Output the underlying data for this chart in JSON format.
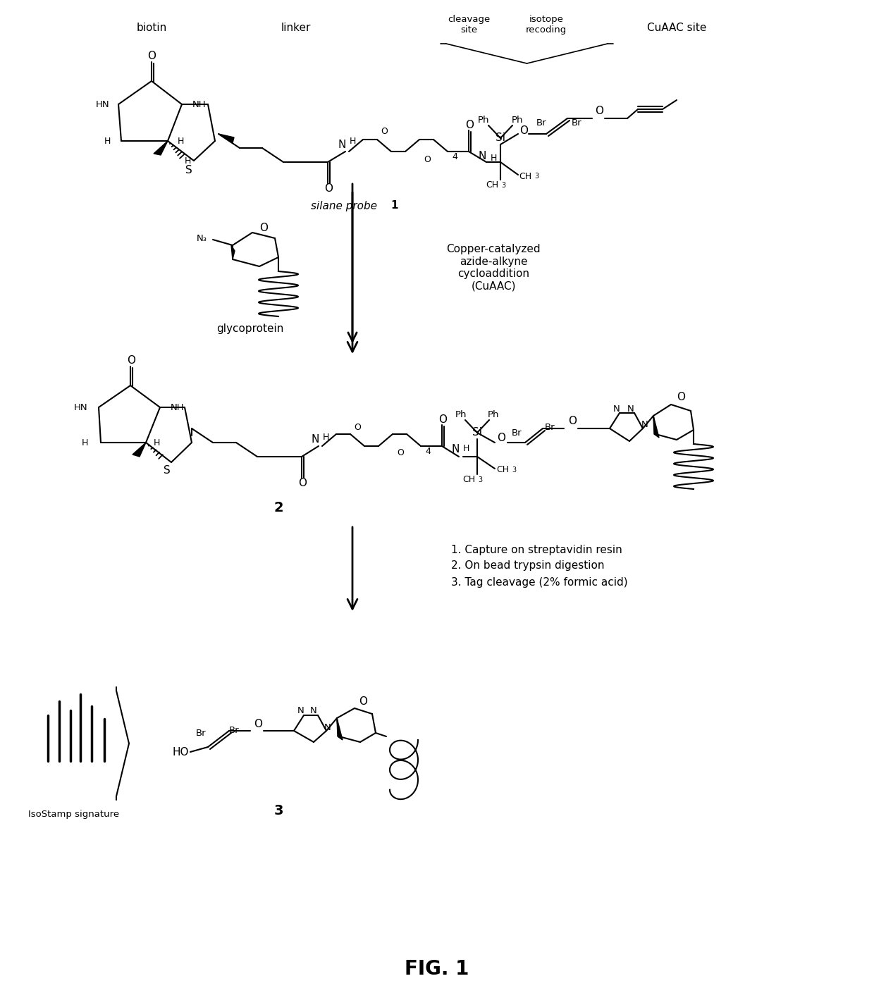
{
  "background_color": "#ffffff",
  "figsize": [
    12.4,
    14.19
  ],
  "dpi": 100,
  "labels": {
    "biotin": "biotin",
    "linker": "linker",
    "cleavage_site": "cleavage\nsite",
    "isotope_recoding": "isotope\nrecoding",
    "cuaac_site": "CuAAC site",
    "silane_probe": "silane probe ",
    "silane_probe_num": "1",
    "glycoprotein": "glycoprotein",
    "cuaac_reaction": "Copper-catalyzed\nazide-alkyne\ncycloaddition\n(CuAAC)",
    "compound2": "2",
    "step1": "1. Capture on streptavidin resin",
    "step2": "2. On bead trypsin digestion",
    "step3": "3. Tag cleavage (2% formic acid)",
    "compound3": "3",
    "isostamp": "IsoStamp signature",
    "fig_label": "FIG. 1"
  }
}
